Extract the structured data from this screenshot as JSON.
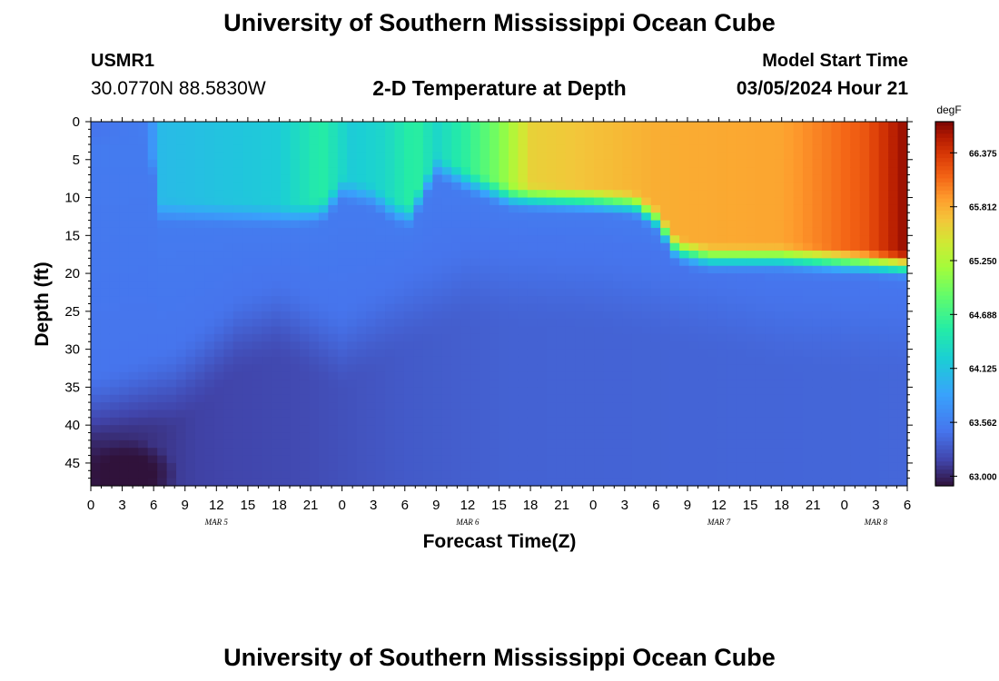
{
  "header": {
    "title": "University of Southern Mississippi Ocean Cube",
    "footer_title": "University of Southern Mississippi Ocean Cube",
    "station_id": "USMR1",
    "coords": "30.0770N  88.5830W",
    "model_start_label": "Model Start Time",
    "model_start_value": "03/05/2024 Hour 21"
  },
  "chart_data": {
    "type": "heatmap",
    "title": "2-D Temperature at Depth",
    "xlabel": "Forecast Time(Z)",
    "ylabel": "Depth (ft)",
    "x_start_hour": 0,
    "x_end_hour": 78,
    "x_tick_labels": [
      "0",
      "3",
      "6",
      "9",
      "12",
      "15",
      "18",
      "21",
      "0",
      "3",
      "6",
      "9",
      "12",
      "15",
      "18",
      "21",
      "0",
      "3",
      "6",
      "9",
      "12",
      "15",
      "18",
      "21",
      "0",
      "3",
      "6"
    ],
    "x_day_labels": [
      {
        "hour": 12,
        "label": "MAR 5"
      },
      {
        "hour": 36,
        "label": "MAR 6"
      },
      {
        "hour": 60,
        "label": "MAR 7"
      },
      {
        "hour": 75,
        "label": "MAR 8"
      }
    ],
    "ylim": [
      0,
      48
    ],
    "y_ticks": [
      0,
      5,
      10,
      15,
      20,
      25,
      30,
      35,
      40,
      45
    ],
    "colorbar": {
      "unit": "degF",
      "min": 62.9,
      "max": 66.7,
      "ticks": [
        "63.000",
        "63.562",
        "64.125",
        "64.688",
        "65.250",
        "65.812",
        "66.375"
      ]
    },
    "warm_layer_top_depth_ft": [
      {
        "hour": 0,
        "depth": 0
      },
      {
        "hour": 5.5,
        "depth": 0
      },
      {
        "hour": 6.5,
        "depth": 10
      },
      {
        "hour": 19,
        "depth": 10.5
      },
      {
        "hour": 22,
        "depth": 10
      },
      {
        "hour": 24,
        "depth": 7
      },
      {
        "hour": 27,
        "depth": 8
      },
      {
        "hour": 29,
        "depth": 10
      },
      {
        "hour": 30.5,
        "depth": 10.5
      },
      {
        "hour": 33,
        "depth": 4
      },
      {
        "hour": 36,
        "depth": 6
      },
      {
        "hour": 40,
        "depth": 8
      },
      {
        "hour": 48,
        "depth": 8.5
      },
      {
        "hour": 52,
        "depth": 9
      },
      {
        "hour": 54,
        "depth": 11
      },
      {
        "hour": 56,
        "depth": 15
      },
      {
        "hour": 59,
        "depth": 16
      },
      {
        "hour": 66,
        "depth": 16
      },
      {
        "hour": 72,
        "depth": 16.5
      },
      {
        "hour": 78,
        "depth": 17
      }
    ],
    "surface_temperature_degF": [
      {
        "hour": 0,
        "temp": 63.45
      },
      {
        "hour": 5.5,
        "temp": 63.55
      },
      {
        "hour": 6.5,
        "temp": 64.05
      },
      {
        "hour": 18,
        "temp": 64.2
      },
      {
        "hour": 22,
        "temp": 64.55
      },
      {
        "hour": 25,
        "temp": 64.2
      },
      {
        "hour": 28,
        "temp": 64.3
      },
      {
        "hour": 31,
        "temp": 64.6
      },
      {
        "hour": 33,
        "temp": 64.3
      },
      {
        "hour": 36,
        "temp": 64.6
      },
      {
        "hour": 39,
        "temp": 65.0
      },
      {
        "hour": 42,
        "temp": 65.6
      },
      {
        "hour": 54,
        "temp": 65.8
      },
      {
        "hour": 66,
        "temp": 65.85
      },
      {
        "hour": 74,
        "temp": 66.2
      },
      {
        "hour": 78,
        "temp": 66.65
      }
    ],
    "mixed_layer_base_depth_ft": [
      {
        "hour": 0,
        "depth": 33
      },
      {
        "hour": 8,
        "depth": 29
      },
      {
        "hour": 14,
        "depth": 22
      },
      {
        "hour": 18,
        "depth": 20
      },
      {
        "hour": 24,
        "depth": 24
      },
      {
        "hour": 30,
        "depth": 19
      },
      {
        "hour": 36,
        "depth": 15
      },
      {
        "hour": 48,
        "depth": 16
      },
      {
        "hour": 56,
        "depth": 18
      },
      {
        "hour": 60,
        "depth": 19
      },
      {
        "hour": 66,
        "depth": 21
      },
      {
        "hour": 78,
        "depth": 22
      }
    ],
    "deep_temperature_degF": [
      {
        "hour": 0,
        "temp": 62.95
      },
      {
        "hour": 10,
        "temp": 63.15
      },
      {
        "hour": 20,
        "temp": 63.2
      },
      {
        "hour": 30,
        "temp": 63.3
      },
      {
        "hour": 40,
        "temp": 63.35
      },
      {
        "hour": 78,
        "temp": 63.38
      }
    ],
    "cold_anomaly": {
      "hour": 3.8,
      "depth": 46.5,
      "temp": 62.85
    }
  }
}
